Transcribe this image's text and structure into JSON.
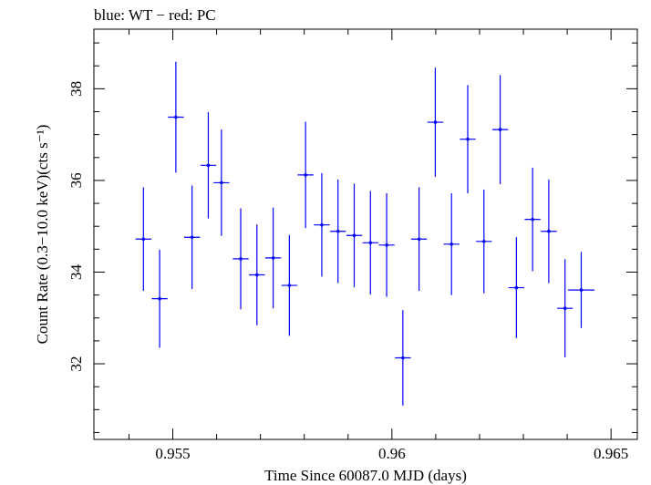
{
  "chart_data": {
    "type": "scatter",
    "title": "blue: WT − red: PC",
    "xlabel": "Time Since 60087.0 MJD (days)",
    "ylabel": "Count Rate (0.3−10.0 keV)(cts s⁻¹)",
    "xlim": [
      0.9532,
      0.9656
    ],
    "ylim": [
      30.35,
      39.3
    ],
    "x_ticks": [
      0.955,
      0.96,
      0.965
    ],
    "x_tick_labels": [
      "0.955",
      "0.96",
      "0.965"
    ],
    "y_ticks": [
      32,
      34,
      36,
      38
    ],
    "y_tick_labels": [
      "32",
      "34",
      "36",
      "38"
    ],
    "grid": false,
    "series": [
      {
        "color": "#0000ff",
        "points": [
          {
            "x": 0.95433,
            "xerr": 0.00018,
            "y": 34.72,
            "yerr": 1.13
          },
          {
            "x": 0.9547,
            "xerr": 0.00018,
            "y": 33.42,
            "yerr": 1.07
          },
          {
            "x": 0.95507,
            "xerr": 0.00018,
            "y": 37.38,
            "yerr": 1.21
          },
          {
            "x": 0.95544,
            "xerr": 0.00018,
            "y": 34.76,
            "yerr": 1.13
          },
          {
            "x": 0.95581,
            "xerr": 0.00018,
            "y": 36.33,
            "yerr": 1.16
          },
          {
            "x": 0.95611,
            "xerr": 0.00018,
            "y": 35.95,
            "yerr": 1.16
          },
          {
            "x": 0.95655,
            "xerr": 0.00018,
            "y": 34.29,
            "yerr": 1.1
          },
          {
            "x": 0.95692,
            "xerr": 0.00018,
            "y": 33.94,
            "yerr": 1.1
          },
          {
            "x": 0.95729,
            "xerr": 0.00018,
            "y": 34.31,
            "yerr": 1.1
          },
          {
            "x": 0.95766,
            "xerr": 0.00018,
            "y": 33.71,
            "yerr": 1.1
          },
          {
            "x": 0.95803,
            "xerr": 0.00018,
            "y": 36.12,
            "yerr": 1.16
          },
          {
            "x": 0.9584,
            "xerr": 0.00018,
            "y": 35.03,
            "yerr": 1.13
          },
          {
            "x": 0.95877,
            "xerr": 0.00018,
            "y": 34.89,
            "yerr": 1.13
          },
          {
            "x": 0.95914,
            "xerr": 0.00018,
            "y": 34.8,
            "yerr": 1.13
          },
          {
            "x": 0.95951,
            "xerr": 0.00018,
            "y": 34.64,
            "yerr": 1.13
          },
          {
            "x": 0.95988,
            "xerr": 0.00018,
            "y": 34.59,
            "yerr": 1.13
          },
          {
            "x": 0.96025,
            "xerr": 0.00018,
            "y": 32.13,
            "yerr": 1.04
          },
          {
            "x": 0.96062,
            "xerr": 0.00018,
            "y": 34.72,
            "yerr": 1.13
          },
          {
            "x": 0.96099,
            "xerr": 0.00018,
            "y": 37.27,
            "yerr": 1.19
          },
          {
            "x": 0.96136,
            "xerr": 0.00018,
            "y": 34.61,
            "yerr": 1.11
          },
          {
            "x": 0.96173,
            "xerr": 0.00018,
            "y": 36.9,
            "yerr": 1.18
          },
          {
            "x": 0.9621,
            "xerr": 0.00018,
            "y": 34.67,
            "yerr": 1.13
          },
          {
            "x": 0.96247,
            "xerr": 0.00018,
            "y": 37.11,
            "yerr": 1.19
          },
          {
            "x": 0.96284,
            "xerr": 0.00018,
            "y": 33.66,
            "yerr": 1.1
          },
          {
            "x": 0.96321,
            "xerr": 0.00018,
            "y": 35.15,
            "yerr": 1.13
          },
          {
            "x": 0.96358,
            "xerr": 0.00018,
            "y": 34.89,
            "yerr": 1.13
          },
          {
            "x": 0.96395,
            "xerr": 0.00018,
            "y": 33.21,
            "yerr": 1.07
          },
          {
            "x": 0.96432,
            "xerr": 0.0003,
            "y": 33.61,
            "yerr": 0.83
          }
        ]
      }
    ]
  }
}
